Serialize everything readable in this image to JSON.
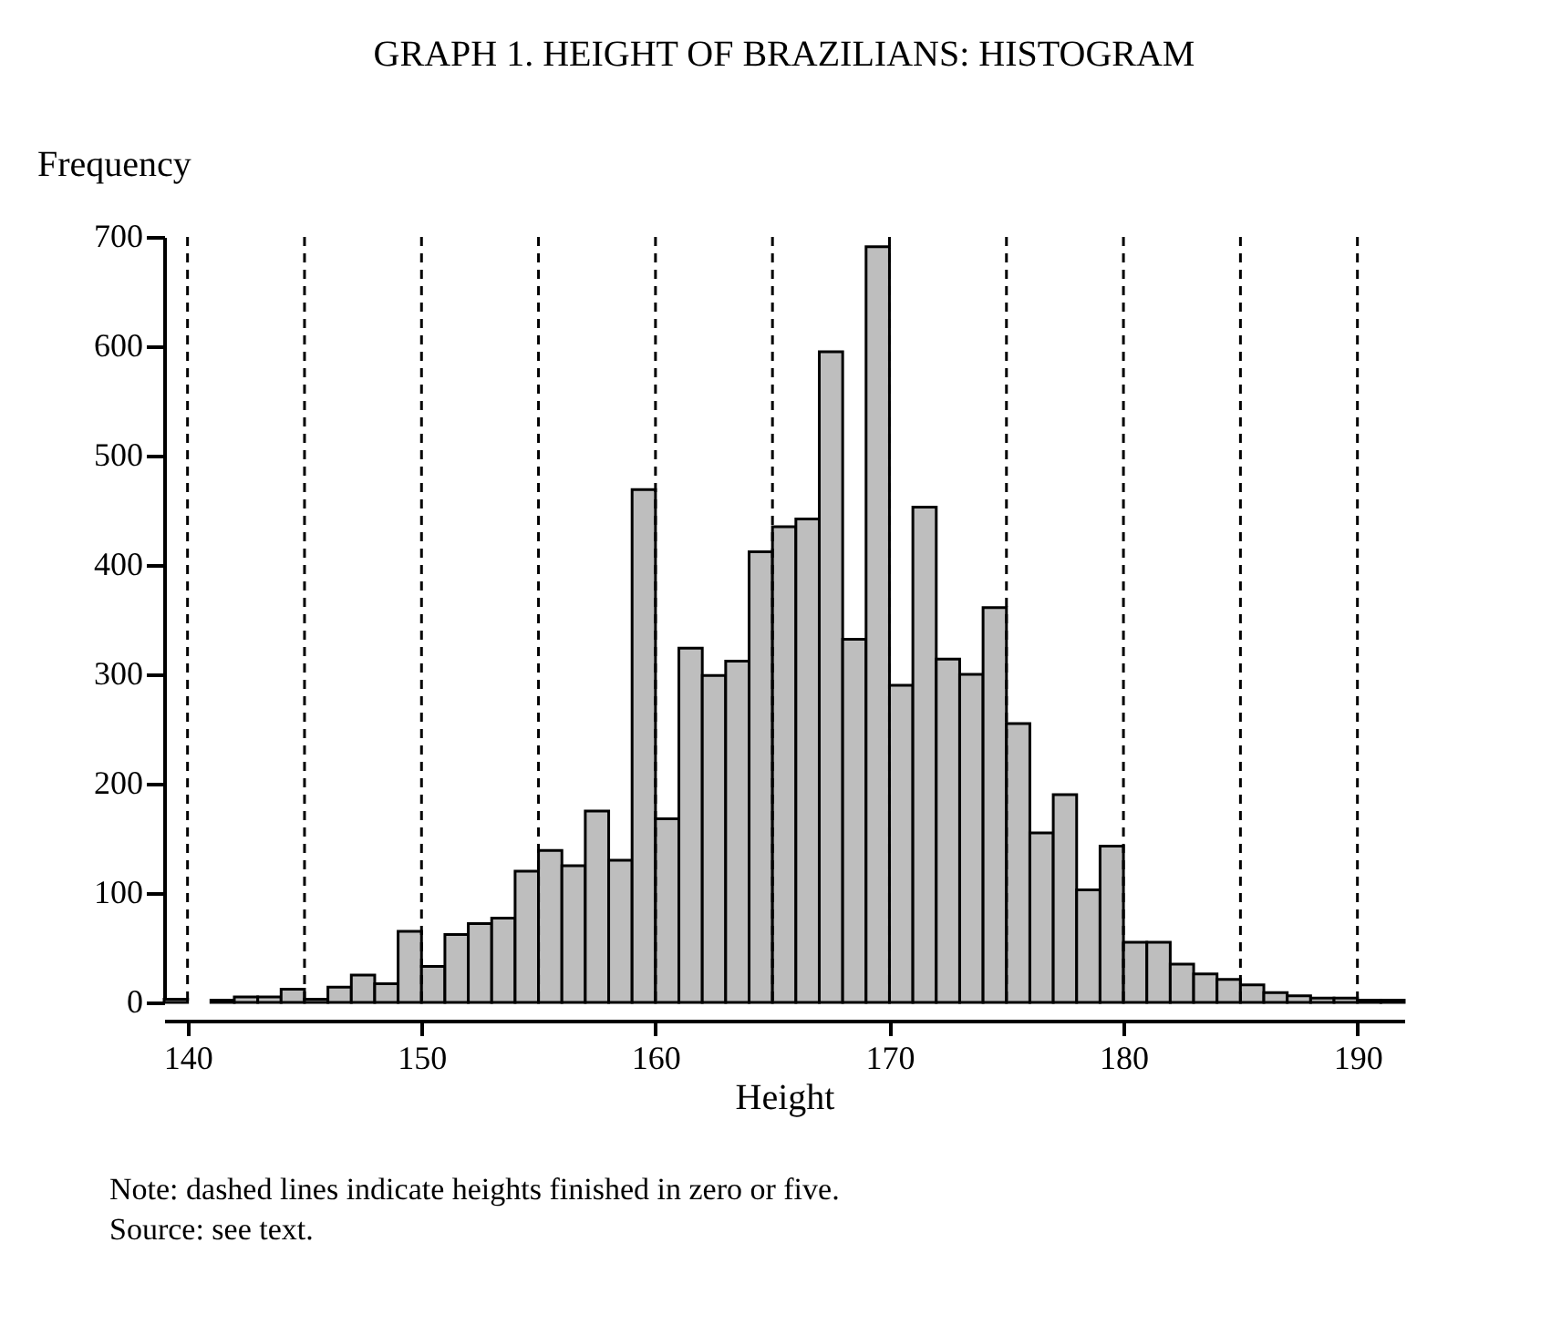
{
  "chart_data": {
    "type": "histogram",
    "title": "GRAPH 1. HEIGHT OF BRAZILIANS: HISTOGRAM",
    "xlabel": "Height",
    "ylabel": "Frequency",
    "bins": [
      139,
      140,
      141,
      142,
      143,
      144,
      145,
      146,
      147,
      148,
      149,
      150,
      151,
      152,
      153,
      154,
      155,
      156,
      157,
      158,
      159,
      160,
      161,
      162,
      163,
      164,
      165,
      166,
      167,
      168,
      169,
      170,
      171,
      172,
      173,
      174,
      175,
      176,
      177,
      178,
      179,
      180,
      181,
      182,
      183,
      184,
      185,
      186,
      187,
      188,
      189,
      190,
      191,
      192
    ],
    "values": [
      3,
      null,
      2,
      5,
      5,
      12,
      3,
      14,
      25,
      17,
      65,
      33,
      62,
      72,
      77,
      120,
      139,
      125,
      175,
      130,
      469,
      168,
      324,
      299,
      312,
      412,
      435,
      442,
      595,
      332,
      691,
      290,
      453,
      314,
      300,
      361,
      255,
      155,
      190,
      103,
      143,
      55,
      55,
      35,
      26,
      21,
      16,
      9,
      6,
      4,
      4,
      2,
      2
    ],
    "color": "#bebebe",
    "xlim": [
      139,
      192
    ],
    "xticks": [
      140,
      150,
      160,
      170,
      180,
      190
    ],
    "ylim": [
      0,
      700
    ],
    "yticks": [
      0,
      100,
      200,
      300,
      400,
      500,
      600,
      700
    ],
    "grid": false,
    "ref_lines": [
      {
        "axis": "x",
        "value": 140,
        "line_style": "dashed",
        "color": "#000000"
      },
      {
        "axis": "x",
        "value": 145,
        "line_style": "dashed",
        "color": "#000000"
      },
      {
        "axis": "x",
        "value": 150,
        "line_style": "dashed",
        "color": "#000000"
      },
      {
        "axis": "x",
        "value": 155,
        "line_style": "dashed",
        "color": "#000000"
      },
      {
        "axis": "x",
        "value": 160,
        "line_style": "dashed",
        "color": "#000000"
      },
      {
        "axis": "x",
        "value": 165,
        "line_style": "dashed",
        "color": "#000000"
      },
      {
        "axis": "x",
        "value": 170,
        "line_style": "dashed",
        "color": "#000000"
      },
      {
        "axis": "x",
        "value": 175,
        "line_style": "dashed",
        "color": "#000000"
      },
      {
        "axis": "x",
        "value": 180,
        "line_style": "dashed",
        "color": "#000000"
      },
      {
        "axis": "x",
        "value": 185,
        "line_style": "dashed",
        "color": "#000000"
      },
      {
        "axis": "x",
        "value": 190,
        "line_style": "dashed",
        "color": "#000000"
      }
    ],
    "annotations": [
      "Note: dashed lines indicate heights finished in zero or five.",
      "Source: see text."
    ]
  }
}
